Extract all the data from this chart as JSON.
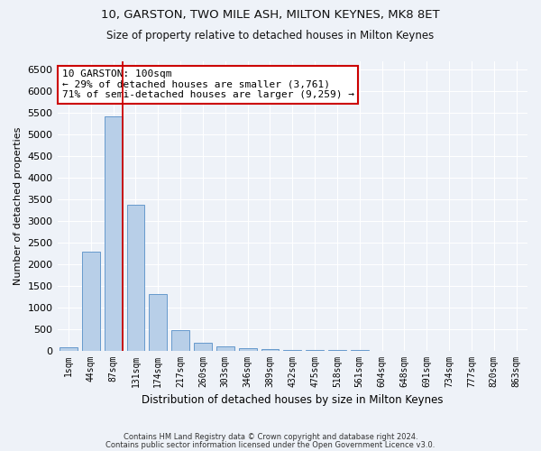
{
  "title1": "10, GARSTON, TWO MILE ASH, MILTON KEYNES, MK8 8ET",
  "title2": "Size of property relative to detached houses in Milton Keynes",
  "xlabel": "Distribution of detached houses by size in Milton Keynes",
  "ylabel": "Number of detached properties",
  "categories": [
    "1sqm",
    "44sqm",
    "87sqm",
    "131sqm",
    "174sqm",
    "217sqm",
    "260sqm",
    "303sqm",
    "346sqm",
    "389sqm",
    "432sqm",
    "475sqm",
    "518sqm",
    "561sqm",
    "604sqm",
    "648sqm",
    "691sqm",
    "734sqm",
    "777sqm",
    "820sqm",
    "863sqm"
  ],
  "values": [
    70,
    2280,
    5420,
    3380,
    1310,
    480,
    185,
    95,
    50,
    35,
    20,
    10,
    5,
    2,
    1,
    0,
    0,
    0,
    0,
    0,
    0
  ],
  "bar_color": "#b8cfe8",
  "bar_edge_color": "#6699cc",
  "vline_x": 2.4,
  "vline_color": "#cc0000",
  "annotation_line1": "10 GARSTON: 100sqm",
  "annotation_line2": "← 29% of detached houses are smaller (3,761)",
  "annotation_line3": "71% of semi-detached houses are larger (9,259) →",
  "annotation_box_color": "#ffffff",
  "annotation_box_edge_color": "#cc0000",
  "ylim": [
    0,
    6700
  ],
  "yticks": [
    0,
    500,
    1000,
    1500,
    2000,
    2500,
    3000,
    3500,
    4000,
    4500,
    5000,
    5500,
    6000,
    6500
  ],
  "footer1": "Contains HM Land Registry data © Crown copyright and database right 2024.",
  "footer2": "Contains public sector information licensed under the Open Government Licence v3.0.",
  "bg_color": "#eef2f8",
  "grid_color": "#ffffff"
}
